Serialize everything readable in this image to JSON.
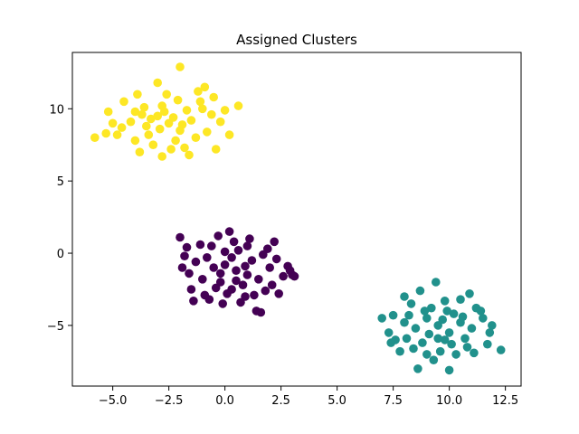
{
  "chart_data": {
    "type": "scatter",
    "title": "Assigned Clusters",
    "xlabel": "",
    "ylabel": "",
    "xlim": [
      -6.8,
      13.2
    ],
    "ylim": [
      -9.2,
      13.9
    ],
    "xticks": [
      -5.0,
      -2.5,
      0.0,
      2.5,
      5.0,
      7.5,
      10.0,
      12.5
    ],
    "xtick_labels": [
      "−5.0",
      "−2.5",
      "0.0",
      "2.5",
      "5.0",
      "7.5",
      "10.0",
      "12.5"
    ],
    "yticks": [
      -5,
      0,
      5,
      10
    ],
    "ytick_labels": [
      "−5",
      "0",
      "5",
      "10"
    ],
    "grid": false,
    "legend": "none",
    "series": [
      {
        "color": "#440154",
        "points": [
          [
            0.5,
            -1.2
          ],
          [
            0.0,
            -0.8
          ],
          [
            1.0,
            -1.5
          ],
          [
            0.3,
            -0.3
          ],
          [
            -0.5,
            -1.0
          ],
          [
            1.5,
            -1.8
          ],
          [
            0.8,
            -2.2
          ],
          [
            -0.2,
            -2.0
          ],
          [
            1.2,
            -0.5
          ],
          [
            0.6,
            0.2
          ],
          [
            -0.8,
            -0.3
          ],
          [
            2.0,
            -1.0
          ],
          [
            -1.0,
            -1.8
          ],
          [
            0.9,
            -3.0
          ],
          [
            0.1,
            -2.8
          ],
          [
            1.8,
            -2.6
          ],
          [
            -0.6,
            0.5
          ],
          [
            0.4,
            0.8
          ],
          [
            2.3,
            -0.4
          ],
          [
            -1.3,
            -0.6
          ],
          [
            1.1,
            1.0
          ],
          [
            -0.3,
            1.2
          ],
          [
            2.6,
            -1.6
          ],
          [
            -1.5,
            -2.5
          ],
          [
            0.7,
            -3.4
          ],
          [
            1.4,
            -4.0
          ],
          [
            -0.1,
            -3.5
          ],
          [
            2.8,
            -0.9
          ],
          [
            -1.8,
            -0.2
          ],
          [
            -2.0,
            1.1
          ],
          [
            0.2,
            1.5
          ],
          [
            3.0,
            -1.5
          ],
          [
            1.6,
            -4.1
          ],
          [
            -0.4,
            -2.4
          ],
          [
            1.9,
            0.3
          ],
          [
            -1.1,
            0.6
          ],
          [
            0.5,
            -1.9
          ],
          [
            1.3,
            -2.9
          ],
          [
            -0.9,
            -2.9
          ],
          [
            2.1,
            -2.2
          ],
          [
            0.0,
            0.1
          ],
          [
            1.7,
            -0.1
          ],
          [
            -1.6,
            -1.4
          ],
          [
            2.4,
            -2.8
          ],
          [
            -0.7,
            -3.2
          ],
          [
            0.9,
            -0.9
          ],
          [
            -0.2,
            -1.4
          ],
          [
            1.0,
            0.5
          ],
          [
            2.9,
            -1.2
          ],
          [
            -1.4,
            -3.3
          ],
          [
            -1.9,
            -1.0
          ],
          [
            -1.7,
            0.4
          ],
          [
            3.1,
            -1.6
          ],
          [
            2.2,
            0.8
          ],
          [
            0.3,
            -2.5
          ]
        ]
      },
      {
        "color": "#21918c",
        "points": [
          [
            9.5,
            -5.0
          ],
          [
            10.0,
            -5.5
          ],
          [
            9.0,
            -4.5
          ],
          [
            10.5,
            -4.8
          ],
          [
            8.5,
            -5.2
          ],
          [
            9.8,
            -6.0
          ],
          [
            9.2,
            -3.8
          ],
          [
            11.0,
            -5.2
          ],
          [
            8.0,
            -4.8
          ],
          [
            10.2,
            -4.2
          ],
          [
            9.6,
            -6.8
          ],
          [
            8.8,
            -6.2
          ],
          [
            11.5,
            -4.5
          ],
          [
            7.5,
            -4.3
          ],
          [
            10.8,
            -6.5
          ],
          [
            9.4,
            -2.0
          ],
          [
            8.3,
            -3.5
          ],
          [
            12.3,
            -6.7
          ],
          [
            7.0,
            -4.5
          ],
          [
            10.0,
            -8.1
          ],
          [
            8.6,
            -8.0
          ],
          [
            11.8,
            -5.5
          ],
          [
            9.0,
            -7.0
          ],
          [
            10.5,
            -3.2
          ],
          [
            7.8,
            -6.8
          ],
          [
            11.2,
            -3.8
          ],
          [
            8.1,
            -5.9
          ],
          [
            9.9,
            -4.0
          ],
          [
            10.7,
            -5.9
          ],
          [
            8.9,
            -4.0
          ],
          [
            11.7,
            -6.3
          ],
          [
            7.3,
            -5.5
          ],
          [
            10.3,
            -7.0
          ],
          [
            9.1,
            -5.6
          ],
          [
            9.7,
            -4.6
          ],
          [
            8.4,
            -6.6
          ],
          [
            11.4,
            -4.0
          ],
          [
            10.9,
            -2.8
          ],
          [
            8.0,
            -3.0
          ],
          [
            9.3,
            -7.4
          ],
          [
            10.6,
            -4.4
          ],
          [
            7.6,
            -6.0
          ],
          [
            11.9,
            -5.0
          ],
          [
            8.7,
            -2.6
          ],
          [
            9.5,
            -5.9
          ],
          [
            10.1,
            -6.3
          ],
          [
            8.2,
            -4.3
          ],
          [
            7.4,
            -6.2
          ],
          [
            11.1,
            -6.9
          ],
          [
            9.8,
            -3.3
          ]
        ]
      },
      {
        "color": "#fde725",
        "points": [
          [
            -2.5,
            9.0
          ],
          [
            -3.0,
            9.5
          ],
          [
            -2.0,
            8.5
          ],
          [
            -3.5,
            8.8
          ],
          [
            -1.5,
            9.2
          ],
          [
            -2.8,
            10.2
          ],
          [
            -2.2,
            7.8
          ],
          [
            -4.0,
            9.8
          ],
          [
            -1.0,
            10.0
          ],
          [
            -3.2,
            7.5
          ],
          [
            -2.0,
            12.9
          ],
          [
            -5.8,
            8.0
          ],
          [
            -5.2,
            9.8
          ],
          [
            0.6,
            10.2
          ],
          [
            -1.6,
            6.8
          ],
          [
            -2.8,
            6.7
          ],
          [
            -4.5,
            10.5
          ],
          [
            -0.5,
            10.8
          ],
          [
            -3.8,
            7.0
          ],
          [
            -1.2,
            11.2
          ],
          [
            -3.0,
            11.8
          ],
          [
            -4.8,
            8.2
          ],
          [
            -0.2,
            9.1
          ],
          [
            -2.6,
            11.0
          ],
          [
            -1.8,
            7.3
          ],
          [
            -4.2,
            9.1
          ],
          [
            -0.8,
            8.4
          ],
          [
            -3.6,
            10.1
          ],
          [
            -2.1,
            10.6
          ],
          [
            -0.4,
            7.2
          ],
          [
            -5.0,
            9.0
          ],
          [
            -3.4,
            8.2
          ],
          [
            -1.3,
            8.0
          ],
          [
            -2.9,
            8.6
          ],
          [
            -1.7,
            9.9
          ],
          [
            -4.0,
            7.8
          ],
          [
            -0.6,
            9.6
          ],
          [
            -2.3,
            9.4
          ],
          [
            -3.9,
            11.0
          ],
          [
            -1.1,
            10.5
          ],
          [
            -2.4,
            7.2
          ],
          [
            0.2,
            8.2
          ],
          [
            -4.6,
            8.7
          ],
          [
            -0.9,
            11.5
          ],
          [
            -3.3,
            9.3
          ],
          [
            -1.9,
            8.9
          ],
          [
            0.0,
            9.9
          ],
          [
            -5.3,
            8.3
          ],
          [
            -2.7,
            9.8
          ],
          [
            -3.7,
            9.6
          ]
        ]
      }
    ]
  }
}
